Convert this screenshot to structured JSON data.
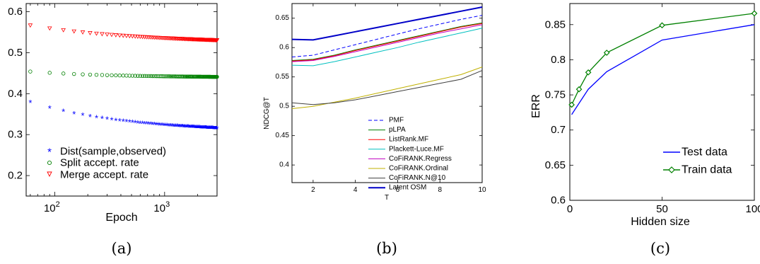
{
  "chart_data": [
    {
      "type": "scatter",
      "caption": "(a)",
      "xlabel": "Epoch",
      "ylabel": "",
      "x_scale": "log",
      "xlim": [
        55,
        3000
      ],
      "ylim": [
        0.15,
        0.62
      ],
      "xtick_labels": [
        {
          "value": 100,
          "base": "10",
          "exp": "2"
        },
        {
          "value": 1000,
          "base": "10",
          "exp": "3"
        }
      ],
      "yticks": [
        0.2,
        0.3,
        0.4,
        0.5,
        0.6
      ],
      "yticks_text": [
        "0.2",
        "0.3",
        "0.4",
        "0.5",
        "0.6"
      ],
      "legend_position": "lower-left",
      "series": [
        {
          "name": "Dist(sample,observed)",
          "marker": "*",
          "color": "#0000ff",
          "y_start": 0.379,
          "y_end": 0.315,
          "curvature": 2.2
        },
        {
          "name": "Split accept. rate",
          "marker": "o",
          "color": "#008000",
          "y_start": 0.454,
          "y_end": 0.441,
          "curvature": 2.5
        },
        {
          "name": "Merge accept. rate",
          "marker": "v",
          "color": "#ff0000",
          "y_start": 0.567,
          "y_end": 0.531,
          "curvature": 2.0
        }
      ]
    },
    {
      "type": "line",
      "caption": "(b)",
      "xlabel": "T",
      "ylabel": "NDCG@T",
      "xlim": [
        1,
        10
      ],
      "ylim": [
        0.37,
        0.675
      ],
      "xticks": [
        2,
        4,
        6,
        8,
        10
      ],
      "xticks_text": [
        "2",
        "4",
        "6",
        "8",
        "10"
      ],
      "yticks": [
        0.4,
        0.45,
        0.5,
        0.55,
        0.6,
        0.65
      ],
      "yticks_text": [
        "0.4",
        "0.45",
        "0.5",
        "0.55",
        "0.6",
        "0.65"
      ],
      "legend_position": "lower-right",
      "x": [
        1,
        2,
        3,
        4,
        5,
        6,
        7,
        8,
        9,
        10
      ],
      "series": [
        {
          "name": "PMF",
          "color": "#0000ff",
          "dash": true,
          "width": 1,
          "values": [
            0.584,
            0.587,
            0.596,
            0.605,
            0.614,
            0.623,
            0.632,
            0.64,
            0.648,
            0.655
          ]
        },
        {
          "name": "pLPA",
          "color": "#008000",
          "dash": false,
          "width": 1,
          "values": [
            0.578,
            0.58,
            0.587,
            0.596,
            0.604,
            0.612,
            0.62,
            0.628,
            0.636,
            0.642
          ]
        },
        {
          "name": "ListRank.MF",
          "color": "#ff0000",
          "dash": false,
          "width": 1,
          "values": [
            0.577,
            0.579,
            0.586,
            0.595,
            0.603,
            0.611,
            0.619,
            0.627,
            0.635,
            0.641
          ]
        },
        {
          "name": "Plackett-Luce.MF",
          "color": "#00c0c0",
          "dash": false,
          "width": 1,
          "values": [
            0.57,
            0.569,
            0.576,
            0.584,
            0.592,
            0.6,
            0.609,
            0.617,
            0.625,
            0.633
          ]
        },
        {
          "name": "CoFiRANK.Regress",
          "color": "#c000c0",
          "dash": false,
          "width": 1,
          "values": [
            0.576,
            0.578,
            0.585,
            0.593,
            0.601,
            0.609,
            0.617,
            0.625,
            0.632,
            0.639
          ]
        },
        {
          "name": "CoFiRANK.Ordinal",
          "color": "#c0b000",
          "dash": false,
          "width": 1,
          "values": [
            0.496,
            0.5,
            0.507,
            0.514,
            0.522,
            0.53,
            0.538,
            0.546,
            0.554,
            0.567
          ]
        },
        {
          "name": "CoFiRANK.N@10",
          "color": "#404040",
          "dash": false,
          "width": 1,
          "values": [
            0.506,
            0.503,
            0.506,
            0.511,
            0.518,
            0.525,
            0.532,
            0.539,
            0.546,
            0.561
          ]
        },
        {
          "name": "Latent OSM",
          "color": "#0000c8",
          "dash": false,
          "width": 2,
          "values": [
            0.614,
            0.613,
            0.62,
            0.627,
            0.634,
            0.641,
            0.648,
            0.655,
            0.662,
            0.669
          ]
        }
      ]
    },
    {
      "type": "line",
      "caption": "(c)",
      "xlabel": "Hidden size",
      "ylabel": "ERR",
      "xlim": [
        0,
        100
      ],
      "ylim": [
        0.6,
        0.88
      ],
      "xticks": [
        0,
        50,
        100
      ],
      "xticks_text": [
        "0",
        "50",
        "100"
      ],
      "yticks": [
        0.6,
        0.65,
        0.7,
        0.75,
        0.8,
        0.85
      ],
      "yticks_text": [
        "0.6",
        "0.65",
        "0.7",
        "0.75",
        "0.8",
        "0.85"
      ],
      "legend_position": "lower-right",
      "series": [
        {
          "name": "Test data",
          "color": "#0000ff",
          "marker": "none",
          "x": [
            1,
            5,
            10,
            20,
            50,
            100
          ],
          "values": [
            0.722,
            0.738,
            0.758,
            0.783,
            0.828,
            0.85
          ]
        },
        {
          "name": "Train data",
          "color": "#008000",
          "marker": "diamond",
          "x": [
            1,
            5,
            10,
            20,
            50,
            100
          ],
          "values": [
            0.736,
            0.758,
            0.782,
            0.81,
            0.849,
            0.866
          ]
        }
      ]
    }
  ]
}
